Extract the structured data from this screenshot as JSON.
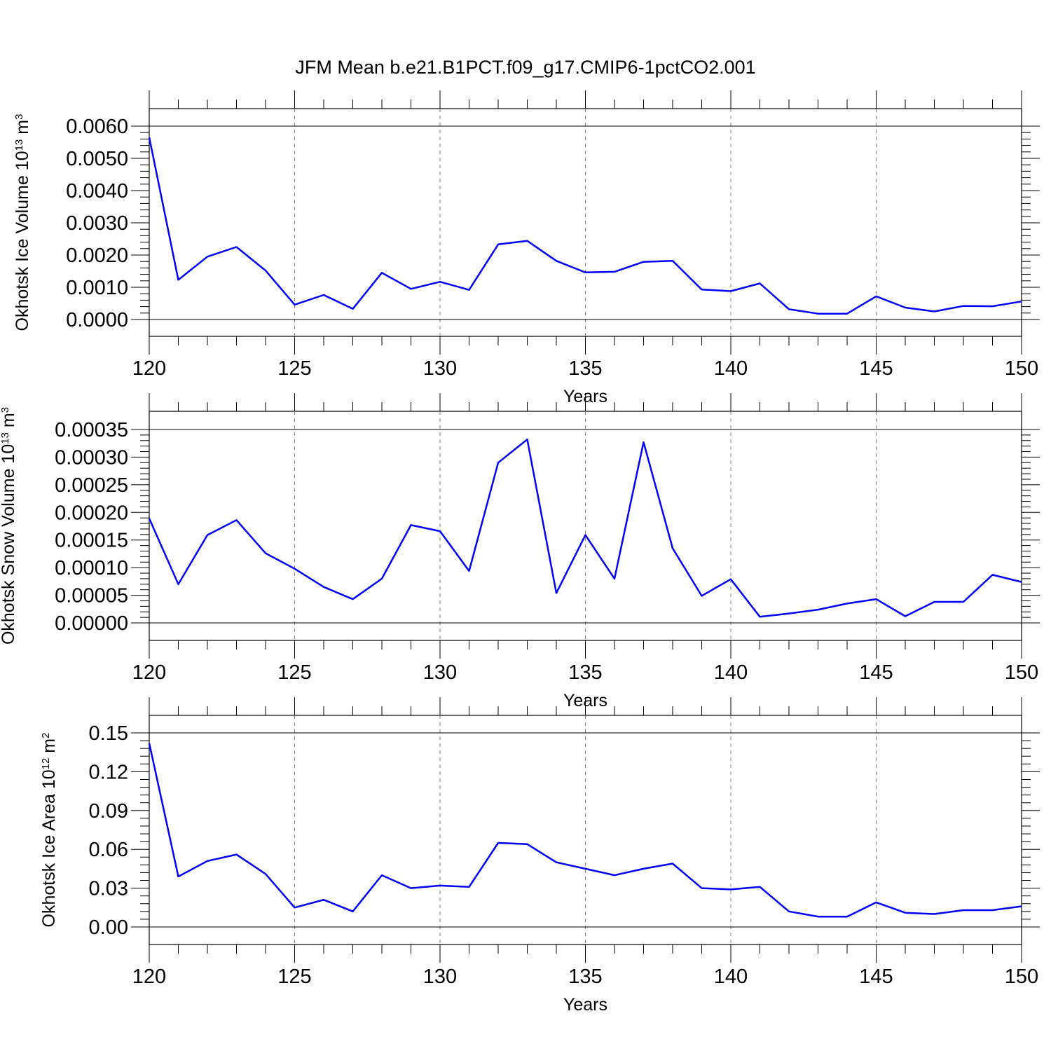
{
  "figure": {
    "title": "JFM Mean b.e21.B1PCT.f09_g17.CMIP6-1pctCO2.001"
  },
  "colors": {
    "series": "#0000ff",
    "axis": "#000000",
    "grid": "#808080",
    "background": "#ffffff"
  },
  "chart_data": [
    {
      "type": "line",
      "title": "JFM Mean b.e21.B1PCT.f09_g17.CMIP6-1pctCO2.001",
      "xlabel": "Years",
      "ylabel": "Okhotsk Ice Volume 10",
      "ylabel_exp": "13",
      "ylabel_unit": " m",
      "ylabel_unit_exp": "3",
      "xlim": [
        120,
        150
      ],
      "ylim": [
        0,
        0.006
      ],
      "x_ticks": [
        120,
        125,
        130,
        135,
        140,
        145,
        150
      ],
      "x_tick_labels": [
        "120",
        "125",
        "130",
        "135",
        "140",
        "145",
        "150"
      ],
      "y_ticks": [
        0,
        0.001,
        0.002,
        0.003,
        0.004,
        0.005,
        0.006
      ],
      "y_tick_labels": [
        "0.0000",
        "0.0010",
        "0.0020",
        "0.0030",
        "0.0040",
        "0.0050",
        "0.0060"
      ],
      "grid": "vertical dashed at major x ticks",
      "x": [
        120,
        121,
        122,
        123,
        124,
        125,
        126,
        127,
        128,
        129,
        130,
        131,
        132,
        133,
        134,
        135,
        136,
        137,
        138,
        139,
        140,
        141,
        142,
        143,
        144,
        145,
        146,
        147,
        148,
        149,
        150
      ],
      "series": [
        {
          "values": [
            0.00565,
            0.00123,
            0.00195,
            0.00225,
            0.00152,
            0.00046,
            0.00076,
            0.00033,
            0.00145,
            0.00095,
            0.00117,
            0.00092,
            0.00233,
            0.00244,
            0.00182,
            0.00146,
            0.00148,
            0.00179,
            0.00182,
            0.00093,
            0.00088,
            0.00112,
            0.00032,
            0.00018,
            0.00018,
            0.00072,
            0.00037,
            0.00025,
            0.00042,
            0.00041,
            0.00056
          ]
        }
      ]
    },
    {
      "type": "line",
      "xlabel": "Years",
      "ylabel": "Okhotsk Snow Volume 10",
      "ylabel_exp": "13",
      "ylabel_unit": " m",
      "ylabel_unit_exp": "3",
      "xlim": [
        120,
        150
      ],
      "ylim": [
        0,
        0.00035
      ],
      "x_ticks": [
        120,
        125,
        130,
        135,
        140,
        145,
        150
      ],
      "x_tick_labels": [
        "120",
        "125",
        "130",
        "135",
        "140",
        "145",
        "150"
      ],
      "y_ticks": [
        0,
        5e-05,
        0.0001,
        0.00015,
        0.0002,
        0.00025,
        0.0003,
        0.00035
      ],
      "y_tick_labels": [
        "0.00000",
        "0.00005",
        "0.00010",
        "0.00015",
        "0.00020",
        "0.00025",
        "0.00030",
        "0.00035"
      ],
      "grid": "vertical dashed at major x ticks",
      "x": [
        120,
        121,
        122,
        123,
        124,
        125,
        126,
        127,
        128,
        129,
        130,
        131,
        132,
        133,
        134,
        135,
        136,
        137,
        138,
        139,
        140,
        141,
        142,
        143,
        144,
        145,
        146,
        147,
        148,
        149,
        150
      ],
      "series": [
        {
          "values": [
            0.000189,
            7e-05,
            0.000159,
            0.000186,
            0.000126,
            9.8e-05,
            6.5e-05,
            4.3e-05,
            8e-05,
            0.000177,
            0.000166,
            9.4e-05,
            0.00029,
            0.000332,
            5.4e-05,
            0.000159,
            8e-05,
            0.000327,
            0.000135,
            4.9e-05,
            7.9e-05,
            1.1e-05,
            1.7e-05,
            2.4e-05,
            3.5e-05,
            4.3e-05,
            1.2e-05,
            3.8e-05,
            3.8e-05,
            8.7e-05,
            7.4e-05
          ]
        }
      ]
    },
    {
      "type": "line",
      "xlabel": "Years",
      "ylabel": "Okhotsk Ice Area 10",
      "ylabel_exp": "12",
      "ylabel_unit": " m",
      "ylabel_unit_exp": "2",
      "xlim": [
        120,
        150
      ],
      "ylim": [
        0,
        0.15
      ],
      "x_ticks": [
        120,
        125,
        130,
        135,
        140,
        145,
        150
      ],
      "x_tick_labels": [
        "120",
        "125",
        "130",
        "135",
        "140",
        "145",
        "150"
      ],
      "y_ticks": [
        0,
        0.03,
        0.06,
        0.09,
        0.12,
        0.15
      ],
      "y_tick_labels": [
        "0.00",
        "0.03",
        "0.06",
        "0.09",
        "0.12",
        "0.15"
      ],
      "grid": "vertical dashed at major x ticks",
      "x": [
        120,
        121,
        122,
        123,
        124,
        125,
        126,
        127,
        128,
        129,
        130,
        131,
        132,
        133,
        134,
        135,
        136,
        137,
        138,
        139,
        140,
        141,
        142,
        143,
        144,
        145,
        146,
        147,
        148,
        149,
        150
      ],
      "series": [
        {
          "values": [
            0.142,
            0.039,
            0.051,
            0.056,
            0.041,
            0.015,
            0.021,
            0.012,
            0.04,
            0.03,
            0.032,
            0.031,
            0.065,
            0.064,
            0.05,
            0.045,
            0.04,
            0.045,
            0.049,
            0.03,
            0.029,
            0.031,
            0.012,
            0.008,
            0.008,
            0.019,
            0.011,
            0.01,
            0.013,
            0.013,
            0.016
          ]
        }
      ]
    }
  ]
}
